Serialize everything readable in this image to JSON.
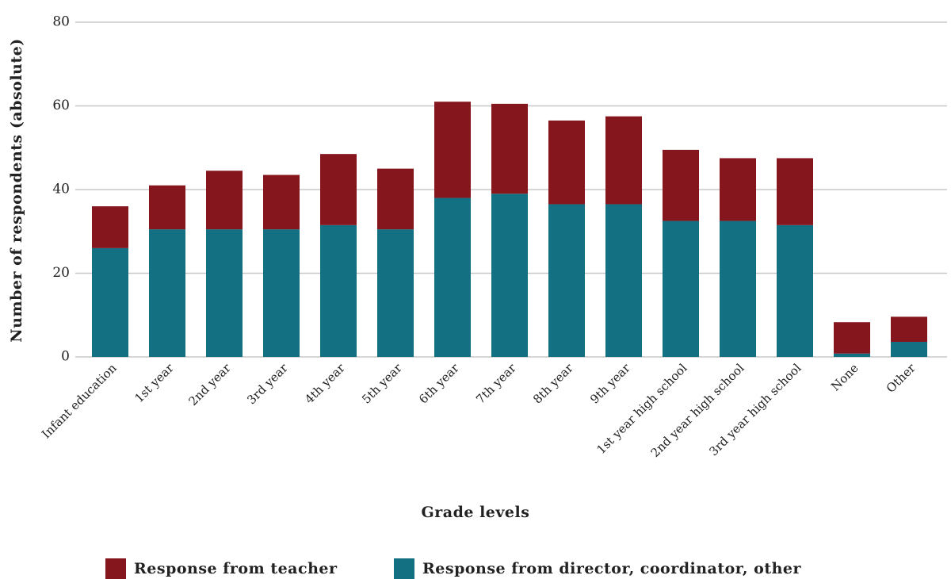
{
  "chart_data": {
    "type": "stacked_bar",
    "categories": [
      "Infant education",
      "1st  year",
      "2nd year",
      "3rd year",
      "4th year",
      "5th year",
      "6th year",
      "7th year",
      "8th year",
      "9th year",
      "1st year high school",
      "2nd year high school",
      "3rd year high school",
      "None",
      "Other"
    ],
    "series": [
      {
        "name": "Response from teacher",
        "color": "#85161e",
        "values": [
          10,
          10.5,
          14,
          13,
          17,
          14.5,
          23,
          21.5,
          20,
          21,
          17,
          15,
          16,
          7.5,
          6
        ]
      },
      {
        "name": "Response from director, coordinator, other",
        "color": "#136f82",
        "values": [
          26,
          30.5,
          30.5,
          30.5,
          31.5,
          30.5,
          38,
          39,
          36.5,
          36.5,
          32.5,
          32.5,
          31.5,
          0.8,
          3.6
        ]
      }
    ],
    "x_label": "Grade levels",
    "y_label": "Number of respondents (absolute)",
    "ylim": [
      0,
      80
    ],
    "yticks": [
      0,
      20,
      40,
      60,
      80
    ],
    "grid": true,
    "legend": "bottom"
  }
}
